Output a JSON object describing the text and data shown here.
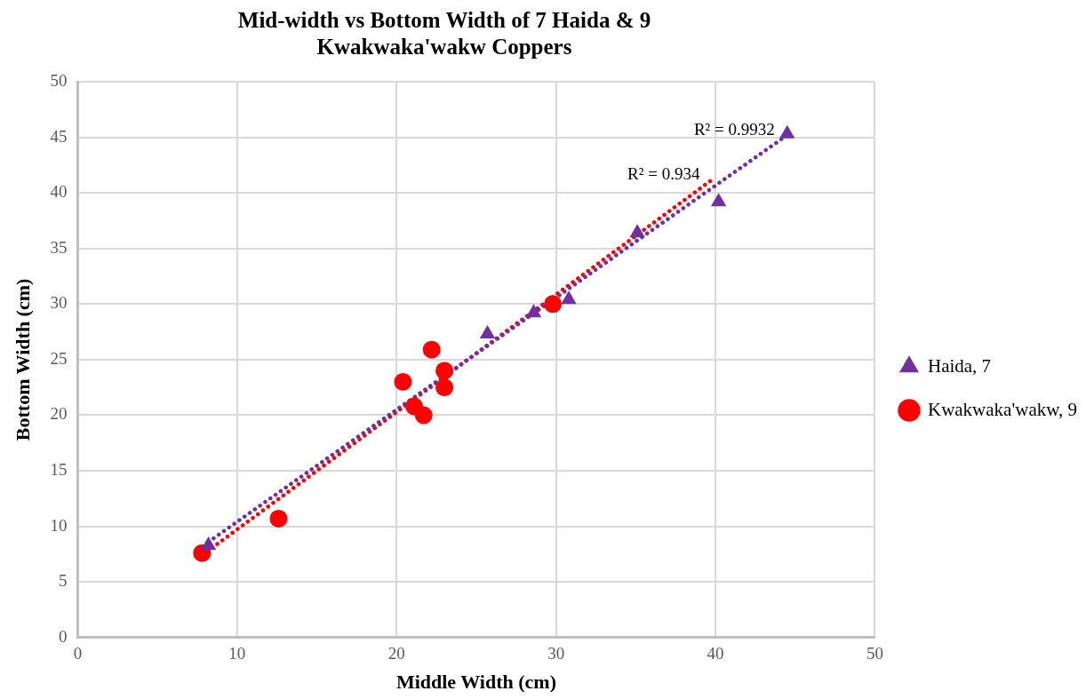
{
  "chart_data": {
    "type": "scatter",
    "title": "Mid-width vs Bottom Width of 7 Haida & 9 Kwakwaka'wakw Coppers",
    "xlabel": "Middle Width (cm)",
    "ylabel": "Bottom Width (cm)",
    "xlim": [
      0,
      50
    ],
    "xticks": [
      0,
      10,
      20,
      30,
      40,
      50
    ],
    "ylim": [
      0,
      50
    ],
    "yticks": [
      0,
      5,
      10,
      15,
      20,
      25,
      30,
      35,
      40,
      45,
      50
    ],
    "grid": true,
    "legend": "right",
    "series": [
      {
        "name": "Haida, 7",
        "color": "#7030a0",
        "marker": "triangle",
        "x": [
          8.2,
          25.7,
          28.6,
          30.8,
          35.1,
          40.2,
          44.5
        ],
        "values": [
          8.3,
          27.3,
          29.2,
          30.4,
          36.4,
          39.2,
          45.3
        ]
      },
      {
        "name": "Kwakwaka'wakw, 9",
        "color": "#ff0000",
        "marker": "circle",
        "x": [
          7.8,
          12.6,
          20.4,
          21.1,
          21.7,
          22.2,
          23.0,
          23.0,
          29.8
        ],
        "values": [
          7.6,
          10.7,
          23.0,
          20.8,
          20.0,
          25.9,
          24.0,
          22.5,
          30.0
        ]
      },
      {
        "type": "line",
        "color": "#7030a0",
        "marker": "none",
        "line_style": "dotted",
        "x": [
          8.2,
          44.5
        ],
        "values": [
          8.6,
          45.2
        ]
      },
      {
        "type": "line",
        "color": "#ff0000",
        "marker": "none",
        "line_style": "dotted",
        "x": [
          7.8,
          39.8
        ],
        "values": [
          7.4,
          41.2
        ]
      }
    ],
    "annotations": [
      "R² = 0.9932",
      "R² = 0.934"
    ]
  }
}
